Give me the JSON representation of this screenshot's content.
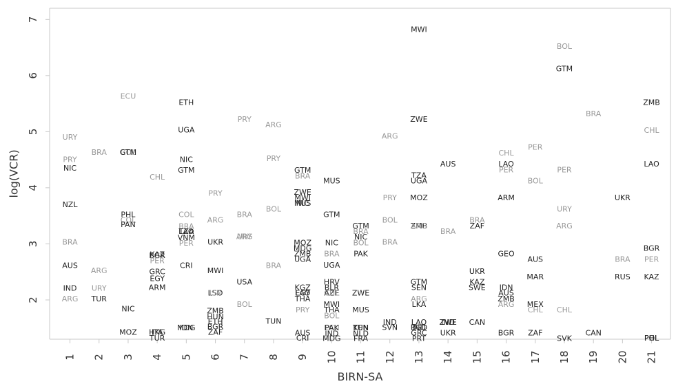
{
  "chart_data": {
    "type": "scatter",
    "title": "",
    "xlabel": "BIRN-SA",
    "ylabel": "log(VCR)",
    "x_ticks": [
      1,
      2,
      3,
      4,
      5,
      6,
      7,
      8,
      9,
      10,
      11,
      12,
      13,
      14,
      15,
      16,
      17,
      18,
      19,
      20,
      21
    ],
    "y_ticks": [
      2,
      3,
      4,
      5,
      6,
      7
    ],
    "xlim": [
      0.3,
      21.65
    ],
    "ylim": [
      1.3,
      7.2
    ],
    "colors": {
      "dark": "#222222",
      "light": "#999999",
      "axis": "#c8c8c8"
    },
    "points": [
      {
        "x": 1,
        "y": 4.9,
        "label": "URY",
        "tone": "light"
      },
      {
        "x": 1,
        "y": 4.5,
        "label": "PRY",
        "tone": "light"
      },
      {
        "x": 1,
        "y": 4.35,
        "label": "NIC",
        "tone": "dark"
      },
      {
        "x": 1,
        "y": 3.7,
        "label": "NZL",
        "tone": "dark"
      },
      {
        "x": 1,
        "y": 3.03,
        "label": "BRA",
        "tone": "light"
      },
      {
        "x": 1,
        "y": 2.61,
        "label": "AUS",
        "tone": "dark"
      },
      {
        "x": 1,
        "y": 2.21,
        "label": "IND",
        "tone": "dark"
      },
      {
        "x": 1,
        "y": 2.02,
        "label": "ARG",
        "tone": "light"
      },
      {
        "x": 2,
        "y": 4.63,
        "label": "BRA",
        "tone": "light"
      },
      {
        "x": 2,
        "y": 2.52,
        "label": "ARG",
        "tone": "light"
      },
      {
        "x": 2,
        "y": 2.21,
        "label": "URY",
        "tone": "light"
      },
      {
        "x": 2,
        "y": 2.02,
        "label": "TUR",
        "tone": "dark"
      },
      {
        "x": 3,
        "y": 5.63,
        "label": "ECU",
        "tone": "light"
      },
      {
        "x": 3,
        "y": 4.63,
        "label": "COL",
        "tone": "light"
      },
      {
        "x": 3,
        "y": 4.63,
        "label": "GTM",
        "tone": "dark"
      },
      {
        "x": 3,
        "y": 3.52,
        "label": "PHL",
        "tone": "dark"
      },
      {
        "x": 3,
        "y": 3.42,
        "label": "COL",
        "tone": "light"
      },
      {
        "x": 3,
        "y": 3.34,
        "label": "PAN",
        "tone": "dark"
      },
      {
        "x": 3,
        "y": 1.84,
        "label": "NIC",
        "tone": "dark"
      },
      {
        "x": 3,
        "y": 1.42,
        "label": "MOZ",
        "tone": "dark"
      },
      {
        "x": 4,
        "y": 4.19,
        "label": "CHL",
        "tone": "light"
      },
      {
        "x": 4,
        "y": 2.81,
        "label": "KAZ",
        "tone": "dark"
      },
      {
        "x": 4,
        "y": 2.79,
        "label": "BGR",
        "tone": "dark"
      },
      {
        "x": 4,
        "y": 2.7,
        "label": "PER",
        "tone": "light"
      },
      {
        "x": 4,
        "y": 2.5,
        "label": "GRC",
        "tone": "dark"
      },
      {
        "x": 4,
        "y": 2.38,
        "label": "EGY",
        "tone": "dark"
      },
      {
        "x": 4,
        "y": 2.22,
        "label": "ARM",
        "tone": "dark"
      },
      {
        "x": 4,
        "y": 1.42,
        "label": "HKG",
        "tone": "dark"
      },
      {
        "x": 4,
        "y": 1.42,
        "label": "ITA",
        "tone": "dark"
      },
      {
        "x": 4,
        "y": 1.32,
        "label": "TUR",
        "tone": "dark"
      },
      {
        "x": 5,
        "y": 5.52,
        "label": "ETH",
        "tone": "dark"
      },
      {
        "x": 5,
        "y": 5.03,
        "label": "UGA",
        "tone": "dark"
      },
      {
        "x": 5,
        "y": 4.5,
        "label": "NIC",
        "tone": "dark"
      },
      {
        "x": 5,
        "y": 4.31,
        "label": "GTM",
        "tone": "dark"
      },
      {
        "x": 5,
        "y": 3.52,
        "label": "COL",
        "tone": "light"
      },
      {
        "x": 5,
        "y": 3.31,
        "label": "BRA",
        "tone": "light"
      },
      {
        "x": 5,
        "y": 3.22,
        "label": "TZA",
        "tone": "dark"
      },
      {
        "x": 5,
        "y": 3.22,
        "label": "LAO",
        "tone": "dark"
      },
      {
        "x": 5,
        "y": 3.11,
        "label": "VNM",
        "tone": "dark"
      },
      {
        "x": 5,
        "y": 3.01,
        "label": "PER",
        "tone": "light"
      },
      {
        "x": 5,
        "y": 2.61,
        "label": "CRI",
        "tone": "dark"
      },
      {
        "x": 5,
        "y": 1.5,
        "label": "MDG",
        "tone": "dark"
      },
      {
        "x": 5,
        "y": 1.5,
        "label": "IDN",
        "tone": "dark"
      },
      {
        "x": 6,
        "y": 3.9,
        "label": "PRY",
        "tone": "light"
      },
      {
        "x": 6,
        "y": 3.42,
        "label": "ARG",
        "tone": "light"
      },
      {
        "x": 6,
        "y": 3.03,
        "label": "UKR",
        "tone": "dark"
      },
      {
        "x": 6,
        "y": 2.52,
        "label": "MWI",
        "tone": "dark"
      },
      {
        "x": 6,
        "y": 2.12,
        "label": "LSO",
        "tone": "dark"
      },
      {
        "x": 6,
        "y": 2.12,
        "label": "ISR",
        "tone": "light"
      },
      {
        "x": 6,
        "y": 1.8,
        "label": "ZMB",
        "tone": "dark"
      },
      {
        "x": 6,
        "y": 1.7,
        "label": "HUN",
        "tone": "dark"
      },
      {
        "x": 6,
        "y": 1.61,
        "label": "ETH",
        "tone": "dark"
      },
      {
        "x": 6,
        "y": 1.52,
        "label": "BGR",
        "tone": "dark"
      },
      {
        "x": 6,
        "y": 1.42,
        "label": "ZAF",
        "tone": "dark"
      },
      {
        "x": 7,
        "y": 5.22,
        "label": "PRY",
        "tone": "light"
      },
      {
        "x": 7,
        "y": 3.52,
        "label": "BRA",
        "tone": "light"
      },
      {
        "x": 7,
        "y": 3.13,
        "label": "ARG",
        "tone": "light"
      },
      {
        "x": 7,
        "y": 3.13,
        "label": "URY",
        "tone": "light"
      },
      {
        "x": 7,
        "y": 2.32,
        "label": "USA",
        "tone": "dark"
      },
      {
        "x": 7,
        "y": 1.92,
        "label": "BOL",
        "tone": "light"
      },
      {
        "x": 8,
        "y": 5.12,
        "label": "ARG",
        "tone": "light"
      },
      {
        "x": 8,
        "y": 4.52,
        "label": "PRY",
        "tone": "light"
      },
      {
        "x": 8,
        "y": 3.62,
        "label": "BOL",
        "tone": "light"
      },
      {
        "x": 8,
        "y": 2.61,
        "label": "BRA",
        "tone": "light"
      },
      {
        "x": 8,
        "y": 1.62,
        "label": "TUN",
        "tone": "dark"
      },
      {
        "x": 9,
        "y": 4.31,
        "label": "GTM",
        "tone": "dark"
      },
      {
        "x": 9,
        "y": 4.21,
        "label": "BRA",
        "tone": "light"
      },
      {
        "x": 9,
        "y": 3.92,
        "label": "ZWE",
        "tone": "dark"
      },
      {
        "x": 9,
        "y": 3.82,
        "label": "MWI",
        "tone": "dark"
      },
      {
        "x": 9,
        "y": 3.72,
        "label": "MUS",
        "tone": "dark"
      },
      {
        "x": 9,
        "y": 3.72,
        "label": "NIC",
        "tone": "dark"
      },
      {
        "x": 9,
        "y": 3.02,
        "label": "MOZ",
        "tone": "dark"
      },
      {
        "x": 9,
        "y": 2.92,
        "label": "MDG",
        "tone": "dark"
      },
      {
        "x": 9,
        "y": 2.82,
        "label": "ZMB",
        "tone": "dark"
      },
      {
        "x": 9,
        "y": 2.72,
        "label": "UGA",
        "tone": "dark"
      },
      {
        "x": 9,
        "y": 2.22,
        "label": "KGZ",
        "tone": "dark"
      },
      {
        "x": 9,
        "y": 2.12,
        "label": "EGY",
        "tone": "dark"
      },
      {
        "x": 9,
        "y": 2.12,
        "label": "LAO",
        "tone": "dark"
      },
      {
        "x": 9,
        "y": 2.02,
        "label": "THA",
        "tone": "dark"
      },
      {
        "x": 9,
        "y": 1.82,
        "label": "PRY",
        "tone": "light"
      },
      {
        "x": 9,
        "y": 1.41,
        "label": "AUS",
        "tone": "dark"
      },
      {
        "x": 9,
        "y": 1.32,
        "label": "CRI",
        "tone": "dark"
      },
      {
        "x": 10,
        "y": 4.12,
        "label": "MUS",
        "tone": "dark"
      },
      {
        "x": 10,
        "y": 3.52,
        "label": "GTM",
        "tone": "dark"
      },
      {
        "x": 10,
        "y": 3.02,
        "label": "NIC",
        "tone": "dark"
      },
      {
        "x": 10,
        "y": 2.82,
        "label": "BRA",
        "tone": "light"
      },
      {
        "x": 10,
        "y": 2.62,
        "label": "UGA",
        "tone": "dark"
      },
      {
        "x": 10,
        "y": 2.32,
        "label": "HRV",
        "tone": "dark"
      },
      {
        "x": 10,
        "y": 2.22,
        "label": "BLR",
        "tone": "dark"
      },
      {
        "x": 10,
        "y": 2.12,
        "label": "AZE",
        "tone": "dark"
      },
      {
        "x": 10,
        "y": 2.12,
        "label": "CHL",
        "tone": "light"
      },
      {
        "x": 10,
        "y": 1.92,
        "label": "MWI",
        "tone": "dark"
      },
      {
        "x": 10,
        "y": 1.82,
        "label": "THA",
        "tone": "dark"
      },
      {
        "x": 10,
        "y": 1.72,
        "label": "BOL",
        "tone": "light"
      },
      {
        "x": 10,
        "y": 1.5,
        "label": "ECU",
        "tone": "light"
      },
      {
        "x": 10,
        "y": 1.5,
        "label": "PAK",
        "tone": "dark"
      },
      {
        "x": 10,
        "y": 1.4,
        "label": "IND",
        "tone": "dark"
      },
      {
        "x": 10,
        "y": 1.31,
        "label": "MDG",
        "tone": "dark"
      },
      {
        "x": 11,
        "y": 3.32,
        "label": "GTM",
        "tone": "dark"
      },
      {
        "x": 11,
        "y": 3.22,
        "label": "BRA",
        "tone": "light"
      },
      {
        "x": 11,
        "y": 3.12,
        "label": "NIC",
        "tone": "dark"
      },
      {
        "x": 11,
        "y": 3.02,
        "label": "BOL",
        "tone": "light"
      },
      {
        "x": 11,
        "y": 2.82,
        "label": "PAK",
        "tone": "dark"
      },
      {
        "x": 11,
        "y": 2.12,
        "label": "ZWE",
        "tone": "dark"
      },
      {
        "x": 11,
        "y": 1.82,
        "label": "MUS",
        "tone": "dark"
      },
      {
        "x": 11,
        "y": 1.5,
        "label": "KEN",
        "tone": "dark"
      },
      {
        "x": 11,
        "y": 1.5,
        "label": "TUN",
        "tone": "dark"
      },
      {
        "x": 11,
        "y": 1.4,
        "label": "NLD",
        "tone": "dark"
      },
      {
        "x": 11,
        "y": 1.31,
        "label": "FRA",
        "tone": "dark"
      },
      {
        "x": 12,
        "y": 4.92,
        "label": "ARG",
        "tone": "light"
      },
      {
        "x": 12,
        "y": 3.82,
        "label": "PRY",
        "tone": "light"
      },
      {
        "x": 12,
        "y": 3.42,
        "label": "BOL",
        "tone": "light"
      },
      {
        "x": 12,
        "y": 3.03,
        "label": "BRA",
        "tone": "light"
      },
      {
        "x": 12,
        "y": 1.6,
        "label": "IND",
        "tone": "dark"
      },
      {
        "x": 12,
        "y": 1.51,
        "label": "SVN",
        "tone": "dark"
      },
      {
        "x": 13,
        "y": 6.82,
        "label": "MWI",
        "tone": "dark"
      },
      {
        "x": 13,
        "y": 5.22,
        "label": "ZWE",
        "tone": "dark"
      },
      {
        "x": 13,
        "y": 4.22,
        "label": "TZA",
        "tone": "dark"
      },
      {
        "x": 13,
        "y": 4.12,
        "label": "UGA",
        "tone": "dark"
      },
      {
        "x": 13,
        "y": 3.82,
        "label": "MOZ",
        "tone": "dark"
      },
      {
        "x": 13,
        "y": 3.32,
        "label": "ZMB",
        "tone": "dark"
      },
      {
        "x": 13,
        "y": 3.32,
        "label": "ARG",
        "tone": "light"
      },
      {
        "x": 13,
        "y": 2.32,
        "label": "GTM",
        "tone": "dark"
      },
      {
        "x": 13,
        "y": 2.22,
        "label": "SEN",
        "tone": "dark"
      },
      {
        "x": 13,
        "y": 2.02,
        "label": "ARG",
        "tone": "light"
      },
      {
        "x": 13,
        "y": 1.92,
        "label": "LKA",
        "tone": "dark"
      },
      {
        "x": 13,
        "y": 1.6,
        "label": "LAO",
        "tone": "dark"
      },
      {
        "x": 13,
        "y": 1.51,
        "label": "IND",
        "tone": "dark"
      },
      {
        "x": 13,
        "y": 1.51,
        "label": "BGD",
        "tone": "dark"
      },
      {
        "x": 13,
        "y": 1.41,
        "label": "GRC",
        "tone": "dark"
      },
      {
        "x": 13,
        "y": 1.31,
        "label": "PRT",
        "tone": "dark"
      },
      {
        "x": 14,
        "y": 4.42,
        "label": "AUS",
        "tone": "dark"
      },
      {
        "x": 14,
        "y": 3.22,
        "label": "BRA",
        "tone": "light"
      },
      {
        "x": 14,
        "y": 1.6,
        "label": "ZWE",
        "tone": "dark"
      },
      {
        "x": 14,
        "y": 1.6,
        "label": "IND",
        "tone": "dark"
      },
      {
        "x": 14,
        "y": 1.41,
        "label": "UKR",
        "tone": "dark"
      },
      {
        "x": 15,
        "y": 3.42,
        "label": "BRA",
        "tone": "light"
      },
      {
        "x": 15,
        "y": 3.32,
        "label": "ZAF",
        "tone": "dark"
      },
      {
        "x": 15,
        "y": 2.51,
        "label": "UKR",
        "tone": "dark"
      },
      {
        "x": 15,
        "y": 2.32,
        "label": "KAZ",
        "tone": "dark"
      },
      {
        "x": 15,
        "y": 2.22,
        "label": "SWE",
        "tone": "dark"
      },
      {
        "x": 15,
        "y": 1.6,
        "label": "CAN",
        "tone": "dark"
      },
      {
        "x": 16,
        "y": 4.62,
        "label": "CHL",
        "tone": "light"
      },
      {
        "x": 16,
        "y": 4.42,
        "label": "LAO",
        "tone": "dark"
      },
      {
        "x": 16,
        "y": 4.32,
        "label": "PER",
        "tone": "light"
      },
      {
        "x": 16,
        "y": 3.82,
        "label": "ARM",
        "tone": "dark"
      },
      {
        "x": 16,
        "y": 2.82,
        "label": "GEO",
        "tone": "dark"
      },
      {
        "x": 16,
        "y": 2.22,
        "label": "IDN",
        "tone": "dark"
      },
      {
        "x": 16,
        "y": 2.12,
        "label": "AUS",
        "tone": "dark"
      },
      {
        "x": 16,
        "y": 2.02,
        "label": "ZMB",
        "tone": "dark"
      },
      {
        "x": 16,
        "y": 1.92,
        "label": "ARG",
        "tone": "light"
      },
      {
        "x": 16,
        "y": 1.41,
        "label": "BGR",
        "tone": "dark"
      },
      {
        "x": 17,
        "y": 4.72,
        "label": "PER",
        "tone": "light"
      },
      {
        "x": 17,
        "y": 4.12,
        "label": "BOL",
        "tone": "light"
      },
      {
        "x": 17,
        "y": 2.72,
        "label": "AUS",
        "tone": "dark"
      },
      {
        "x": 17,
        "y": 2.41,
        "label": "MAR",
        "tone": "dark"
      },
      {
        "x": 17,
        "y": 1.92,
        "label": "MEX",
        "tone": "dark"
      },
      {
        "x": 17,
        "y": 1.82,
        "label": "CHL",
        "tone": "light"
      },
      {
        "x": 17,
        "y": 1.41,
        "label": "ZAF",
        "tone": "dark"
      },
      {
        "x": 18,
        "y": 6.52,
        "label": "BOL",
        "tone": "light"
      },
      {
        "x": 18,
        "y": 6.12,
        "label": "GTM",
        "tone": "dark"
      },
      {
        "x": 18,
        "y": 4.32,
        "label": "PER",
        "tone": "light"
      },
      {
        "x": 18,
        "y": 3.62,
        "label": "URY",
        "tone": "light"
      },
      {
        "x": 18,
        "y": 3.32,
        "label": "ARG",
        "tone": "light"
      },
      {
        "x": 18,
        "y": 1.82,
        "label": "CHL",
        "tone": "light"
      },
      {
        "x": 18,
        "y": 1.31,
        "label": "SVK",
        "tone": "dark"
      },
      {
        "x": 19,
        "y": 5.32,
        "label": "BRA",
        "tone": "light"
      },
      {
        "x": 19,
        "y": 1.41,
        "label": "CAN",
        "tone": "dark"
      },
      {
        "x": 20,
        "y": 3.82,
        "label": "UKR",
        "tone": "dark"
      },
      {
        "x": 20,
        "y": 2.72,
        "label": "BRA",
        "tone": "light"
      },
      {
        "x": 20,
        "y": 2.41,
        "label": "RUS",
        "tone": "dark"
      },
      {
        "x": 21,
        "y": 5.52,
        "label": "ZMB",
        "tone": "dark"
      },
      {
        "x": 21,
        "y": 5.02,
        "label": "CHL",
        "tone": "light"
      },
      {
        "x": 21,
        "y": 4.42,
        "label": "LAO",
        "tone": "dark"
      },
      {
        "x": 21,
        "y": 2.92,
        "label": "BGR",
        "tone": "dark"
      },
      {
        "x": 21,
        "y": 2.72,
        "label": "PER",
        "tone": "light"
      },
      {
        "x": 21,
        "y": 2.41,
        "label": "KAZ",
        "tone": "dark"
      },
      {
        "x": 21,
        "y": 1.32,
        "label": "POL",
        "tone": "dark"
      },
      {
        "x": 21,
        "y": 1.32,
        "label": "PHL",
        "tone": "dark"
      }
    ]
  }
}
